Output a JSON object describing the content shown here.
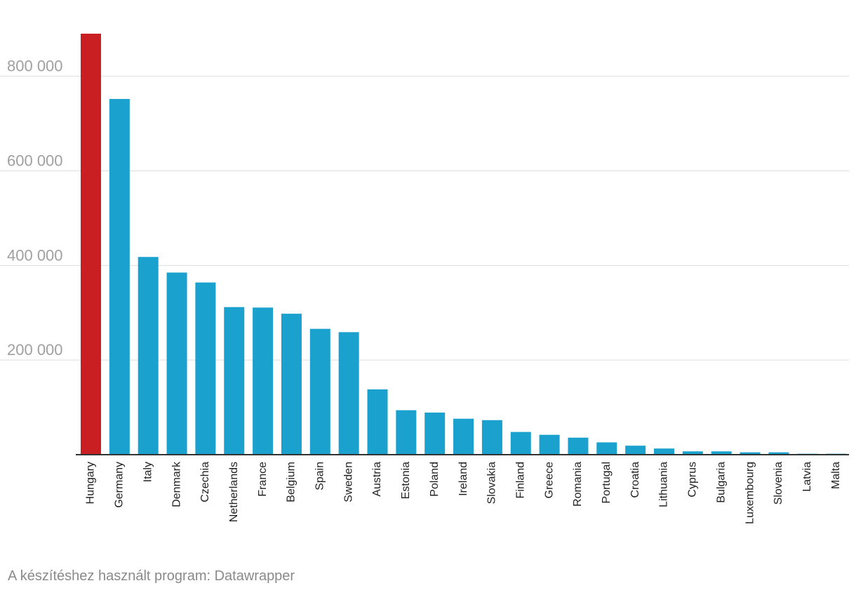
{
  "footer": {
    "credit": "A készítéshez használt program: Datawrapper"
  },
  "colors": {
    "highlight": "#c91f22",
    "default": "#1ba1cd",
    "grid": "#dddddd",
    "tick_text": "#a0a0a0"
  },
  "chart_data": {
    "type": "bar",
    "title": "",
    "xlabel": "",
    "ylabel": "",
    "ylim": [
      0,
      890000
    ],
    "yticks": [
      200000,
      400000,
      600000,
      800000
    ],
    "ytick_labels": [
      "200 000",
      "400 000",
      "600 000",
      "800 000"
    ],
    "grid": true,
    "highlighted_category": "Hungary",
    "categories": [
      "Hungary",
      "Germany",
      "Italy",
      "Denmark",
      "Czechia",
      "Netherlands",
      "France",
      "Belgium",
      "Spain",
      "Sweden",
      "Austria",
      "Estonia",
      "Poland",
      "Ireland",
      "Slovakia",
      "Finland",
      "Greece",
      "Romania",
      "Portugal",
      "Croatia",
      "Lithuania",
      "Cyprus",
      "Bulgaria",
      "Luxembourg",
      "Slovenia",
      "Latvia",
      "Malta"
    ],
    "values": [
      890000,
      752000,
      418000,
      385000,
      364000,
      312000,
      311000,
      298000,
      266000,
      259000,
      138000,
      94000,
      89000,
      76000,
      73000,
      48000,
      42000,
      36000,
      26000,
      19000,
      13000,
      7000,
      7000,
      5000,
      5000,
      2000,
      2000
    ]
  }
}
